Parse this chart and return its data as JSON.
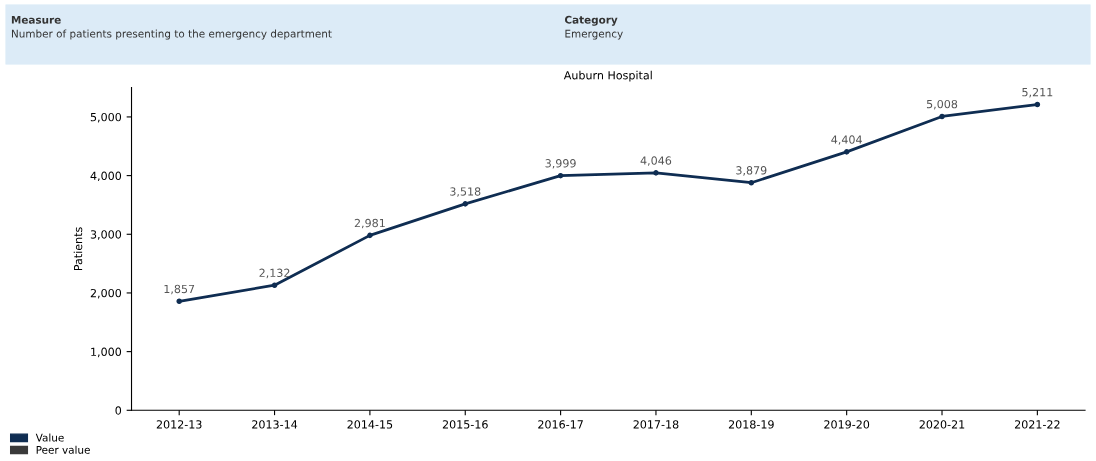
{
  "chart_data": {
    "type": "line",
    "title": "Auburn Hospital",
    "ylabel": "Patients",
    "annotations": [
      "Measure",
      "Number of patients presenting to the emergency department",
      "Category",
      "Emergency"
    ],
    "categories": [
      "2012-13",
      "2013-14",
      "2014-15",
      "2015-16",
      "2016-17",
      "2017-18",
      "2018-19",
      "2019-20",
      "2020-21",
      "2021-22"
    ],
    "series": [
      {
        "name": "Value",
        "color": "#0f2d52",
        "values": [
          1857,
          2132,
          2981,
          3518,
          3999,
          4046,
          3879,
          4404,
          5008,
          5211
        ],
        "value_labels": [
          "1,857",
          "2,132",
          "2,981",
          "3,518",
          "3,999",
          "4,046",
          "3,879",
          "4,404",
          "5,008",
          "5,211"
        ]
      },
      {
        "name": "Peer value",
        "color": "#3a3a3a",
        "values": [
          null,
          null,
          null,
          null,
          null,
          null,
          null,
          null,
          null,
          null
        ]
      }
    ],
    "ylim": [
      0,
      5500
    ],
    "yticks": [
      0,
      {
        "value": 1000,
        "label": "1,000"
      },
      {
        "value": 2000,
        "label": "2,000"
      },
      {
        "value": 3000,
        "label": "3,000"
      },
      {
        "value": 4000,
        "label": "4,000"
      },
      {
        "value": 5000,
        "label": "5,000"
      }
    ],
    "marker": "circle",
    "line_style": "solid",
    "grid": false,
    "legend": "bottom left"
  }
}
